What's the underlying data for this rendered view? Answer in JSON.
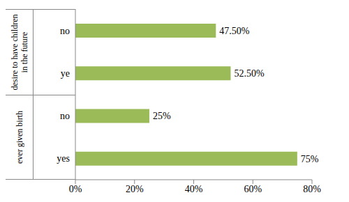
{
  "chart_data": {
    "type": "bar",
    "orientation": "horizontal",
    "categories": [
      "no",
      "ye",
      "no",
      "yes"
    ],
    "groups": [
      "desire to have children in the future",
      "desire to have children in the future",
      "ever given birth",
      "ever given birth"
    ],
    "values": [
      47.5,
      52.5,
      25,
      75
    ],
    "value_labels": [
      "47.50%",
      "52.50%",
      "25%",
      "75%"
    ],
    "color": "#9bbb59",
    "xlim": [
      0,
      80
    ],
    "xticks": [
      {
        "value": 0,
        "label": "0%"
      },
      {
        "value": 20,
        "label": "20%"
      },
      {
        "value": 40,
        "label": "40%"
      },
      {
        "value": 60,
        "label": "60%"
      },
      {
        "value": 80,
        "label": "80%"
      }
    ],
    "grid": false,
    "data_labels": true
  }
}
